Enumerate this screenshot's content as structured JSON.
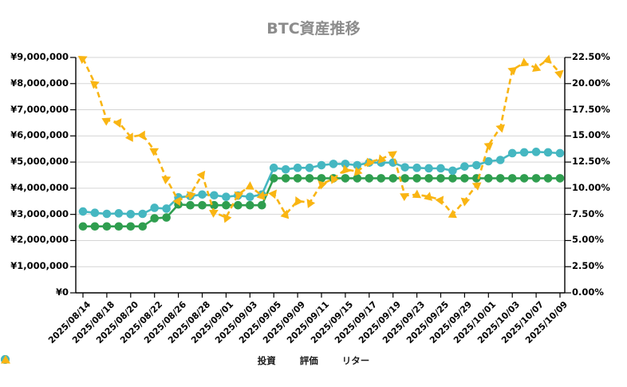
{
  "title": "BTC資産推移",
  "chart_data": {
    "type": "line",
    "title": "BTC資産推移",
    "grid": "horizontal",
    "legend_position": "bottom",
    "total_points": 41,
    "x_tick_labels": [
      "2025/08/14",
      "2025/08/18",
      "2025/08/20",
      "2025/08/22",
      "2025/08/26",
      "2025/08/28",
      "2025/09/01",
      "2025/09/03",
      "2025/09/05",
      "2025/09/09",
      "2025/09/11",
      "2025/09/15",
      "2025/09/17",
      "2025/09/19",
      "2025/09/23",
      "2025/09/25",
      "2025/09/29",
      "2025/10/01",
      "2025/10/03",
      "2025/10/07",
      "2025/10/09"
    ],
    "x_tick_indices": [
      0,
      2,
      4,
      6,
      8,
      10,
      12,
      14,
      16,
      18,
      20,
      22,
      24,
      26,
      28,
      30,
      32,
      34,
      36,
      38,
      40
    ],
    "left_axis": {
      "min": 0,
      "max": 9000000,
      "step": 1000000,
      "format": "yen"
    },
    "right_axis": {
      "min": 0,
      "max": 22.5,
      "step": 2.5,
      "format": "percent"
    },
    "series": [
      {
        "name": "投資",
        "axis": "left",
        "color": "#2f9e4f",
        "marker": "circle",
        "line_style": "solid",
        "values": [
          2540000,
          2540000,
          2540000,
          2540000,
          2540000,
          2540000,
          2850000,
          2880000,
          3380000,
          3350000,
          3350000,
          3350000,
          3350000,
          3350000,
          3350000,
          3350000,
          4380000,
          4380000,
          4380000,
          4380000,
          4380000,
          4380000,
          4380000,
          4380000,
          4380000,
          4380000,
          4380000,
          4380000,
          4380000,
          4380000,
          4380000,
          4380000,
          4380000,
          4380000,
          4380000,
          4380000,
          4380000,
          4380000,
          4380000,
          4380000,
          4380000
        ]
      },
      {
        "name": "評価",
        "axis": "left",
        "color": "#45b7c1",
        "marker": "circle",
        "line_style": "solid",
        "values": [
          3110000,
          3060000,
          3020000,
          3040000,
          3010000,
          3020000,
          3250000,
          3220000,
          3650000,
          3700000,
          3760000,
          3730000,
          3670000,
          3720000,
          3670000,
          3760000,
          4780000,
          4720000,
          4780000,
          4780000,
          4880000,
          4930000,
          4930000,
          4880000,
          4980000,
          4980000,
          4980000,
          4800000,
          4780000,
          4760000,
          4760000,
          4670000,
          4830000,
          4880000,
          5030000,
          5080000,
          5340000,
          5370000,
          5390000,
          5370000,
          5340000
        ]
      },
      {
        "name": "リター",
        "axis": "right",
        "color": "#f9b513",
        "marker": "triangle",
        "line_style": "dashed",
        "values": [
          22.4,
          20.0,
          16.5,
          16.3,
          14.9,
          15.1,
          13.6,
          10.9,
          8.8,
          9.4,
          11.3,
          7.7,
          7.2,
          9.4,
          10.2,
          9.3,
          9.5,
          7.5,
          8.8,
          8.6,
          10.4,
          10.9,
          11.8,
          11.6,
          12.5,
          12.8,
          13.3,
          9.3,
          9.4,
          9.2,
          8.9,
          7.5,
          8.8,
          10.3,
          14.1,
          15.8,
          21.3,
          22.0,
          21.5,
          22.3,
          21.0
        ]
      }
    ]
  },
  "colors": {
    "title": "#8c8c8c",
    "grid": "#d5d5d5",
    "axis": "#000000",
    "invest": "#2f9e4f",
    "value": "#45b7c1",
    "return": "#f9b513"
  }
}
